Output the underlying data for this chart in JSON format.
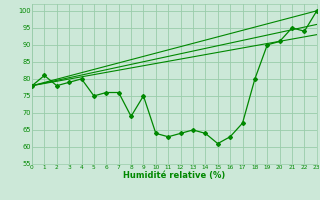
{
  "xlabel": "Humidité relative (%)",
  "background_color": "#cce8d8",
  "grid_color": "#99ccaa",
  "line_color": "#008800",
  "xlim": [
    0,
    23
  ],
  "ylim": [
    55,
    102
  ],
  "yticks": [
    55,
    60,
    65,
    70,
    75,
    80,
    85,
    90,
    95,
    100
  ],
  "xticks": [
    0,
    1,
    2,
    3,
    4,
    5,
    6,
    7,
    8,
    9,
    10,
    11,
    12,
    13,
    14,
    15,
    16,
    17,
    18,
    19,
    20,
    21,
    22,
    23
  ],
  "main_x": [
    0,
    1,
    2,
    3,
    4,
    5,
    6,
    7,
    8,
    9,
    10,
    11,
    12,
    13,
    14,
    15,
    16,
    17,
    18,
    19,
    20,
    21,
    22,
    23
  ],
  "main_y": [
    78,
    81,
    78,
    79,
    80,
    75,
    76,
    76,
    69,
    75,
    64,
    63,
    64,
    65,
    64,
    61,
    63,
    67,
    80,
    90,
    91,
    95,
    94,
    100
  ],
  "trend1_x": [
    0,
    23
  ],
  "trend1_y": [
    78,
    100
  ],
  "trend2_x": [
    0,
    23
  ],
  "trend2_y": [
    78,
    96
  ],
  "trend3_x": [
    0,
    23
  ],
  "trend3_y": [
    78,
    93
  ]
}
